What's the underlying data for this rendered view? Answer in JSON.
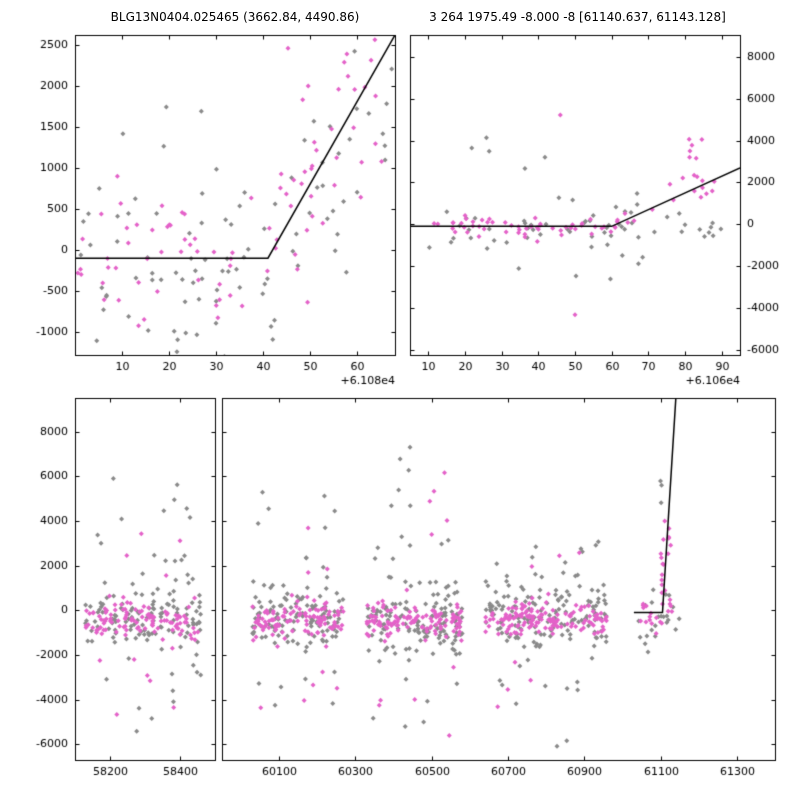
{
  "title": {
    "left": "BLG13N0404.025465 (3662.84, 4490.86)",
    "right": "3 264 1975.49 -8.000 -8 [61140.637, 61143.128]"
  },
  "colors": {
    "background": "#ffffff",
    "axis": "#000000",
    "gray_points": "#8a8a8a",
    "magenta_points": "#e462c9",
    "model_line": "#000000"
  },
  "chart_data": [
    {
      "type": "scatter",
      "name": "top-left-zoom-panel",
      "x_range": [
        0,
        68
      ],
      "y_range": [
        -1280,
        2620
      ],
      "x_ticks": [
        10,
        20,
        30,
        40,
        50,
        60
      ],
      "y_ticks": [
        -1000,
        -500,
        0,
        500,
        1000,
        1500,
        2000,
        2500
      ],
      "x_offset_label": "+6.108e4",
      "y_label_side": "left",
      "model_line": [
        [
          0,
          -100
        ],
        [
          41,
          -100
        ],
        [
          68,
          2620
        ]
      ],
      "seed": 101,
      "groups": [
        {
          "color": "gray",
          "n": 55,
          "x": [
            0,
            42
          ],
          "y": {
            "dist": "normal",
            "mean": -120,
            "sd": 480
          }
        },
        {
          "color": "gray",
          "n": 4,
          "x": [
            8,
            36
          ],
          "y": {
            "dist": "uniform",
            "min": 1200,
            "max": 2000
          }
        },
        {
          "color": "gray",
          "n": 6,
          "x": [
            10,
            45
          ],
          "y": {
            "dist": "uniform",
            "min": -1300,
            "max": -800
          }
        },
        {
          "color": "gray",
          "n": 30,
          "x": [
            42,
            68
          ],
          "y": {
            "dist": "trend",
            "start": 0,
            "end": 2300,
            "sd": 700
          }
        },
        {
          "color": "magenta",
          "n": 48,
          "x": [
            0,
            42
          ],
          "y": {
            "dist": "normal",
            "mean": -80,
            "sd": 380
          }
        },
        {
          "color": "magenta",
          "n": 38,
          "x": [
            42,
            68
          ],
          "y": {
            "dist": "trend",
            "start": 0,
            "end": 2500,
            "sd": 500
          }
        },
        {
          "color": "magenta",
          "n": 4,
          "x": [
            44,
            58
          ],
          "y": {
            "dist": "uniform",
            "min": 1800,
            "max": 2500
          }
        }
      ]
    },
    {
      "type": "scatter",
      "name": "top-right-mid-panel",
      "x_range": [
        5,
        95
      ],
      "y_range": [
        -6250,
        9050
      ],
      "x_ticks": [
        10,
        20,
        30,
        40,
        50,
        60,
        70,
        80,
        90
      ],
      "y_ticks": [
        -6000,
        -4000,
        -2000,
        0,
        2000,
        4000,
        6000,
        8000
      ],
      "x_offset_label": "+6.106e4",
      "y_label_side": "right",
      "model_line": [
        [
          5,
          -100
        ],
        [
          60,
          -100
        ],
        [
          95,
          2700
        ]
      ],
      "seed": 202,
      "groups": [
        {
          "color": "gray",
          "n": 60,
          "x": [
            8,
            90
          ],
          "y": {
            "dist": "normal",
            "mean": -100,
            "sd": 650
          }
        },
        {
          "color": "gray",
          "n": 5,
          "x": [
            20,
            70
          ],
          "y": {
            "dist": "uniform",
            "min": 1500,
            "max": 4200
          }
        },
        {
          "color": "gray",
          "n": 4,
          "x": [
            30,
            75
          ],
          "y": {
            "dist": "uniform",
            "min": -2900,
            "max": -1500
          }
        },
        {
          "color": "magenta",
          "n": 55,
          "x": [
            10,
            62
          ],
          "y": {
            "dist": "normal",
            "mean": -120,
            "sd": 280
          }
        },
        {
          "color": "magenta",
          "n": 14,
          "x": [
            62,
            88
          ],
          "y": {
            "dist": "trend",
            "start": 0,
            "end": 2200,
            "sd": 400
          }
        },
        {
          "color": "magenta",
          "n": 8,
          "x": [
            81,
            85
          ],
          "y": {
            "dist": "uniform",
            "min": 1500,
            "max": 4300
          }
        },
        {
          "color": "magenta",
          "n": 1,
          "x": [
            46,
            46
          ],
          "y": {
            "dist": "uniform",
            "min": 5200,
            "max": 5400
          }
        },
        {
          "color": "magenta",
          "n": 1,
          "x": [
            50,
            50
          ],
          "y": {
            "dist": "uniform",
            "min": -4400,
            "max": -4300
          }
        }
      ]
    },
    {
      "type": "scatter",
      "name": "bottom-full-lightcurve-panel",
      "segments": [
        {
          "x_range": [
            58100,
            58500
          ],
          "x_ticks": [
            58200,
            58400
          ]
        },
        {
          "x_range": [
            59950,
            61400
          ],
          "x_ticks": [
            60100,
            60300,
            60500,
            60700,
            60900,
            61100,
            61300
          ]
        }
      ],
      "y_range": [
        -6700,
        9500
      ],
      "y_ticks": [
        -6000,
        -4000,
        -2000,
        0,
        2000,
        4000,
        6000,
        8000
      ],
      "y_label_side": "left",
      "model_line": [
        [
          61030,
          -100
        ],
        [
          61105,
          -100
        ],
        [
          61140,
          9500
        ]
      ],
      "seed": 303,
      "groups": [
        {
          "color": "gray",
          "n": 120,
          "x": [
            58130,
            58460
          ],
          "y": {
            "dist": "normal",
            "mean": -250,
            "sd": 800
          }
        },
        {
          "color": "gray",
          "n": 10,
          "x": [
            58140,
            58450
          ],
          "y": {
            "dist": "uniform",
            "min": 1800,
            "max": 4500
          }
        },
        {
          "color": "gray",
          "n": 4,
          "x": [
            58160,
            58420
          ],
          "y": {
            "dist": "uniform",
            "min": 4500,
            "max": 7000
          }
        },
        {
          "color": "gray",
          "n": 8,
          "x": [
            58140,
            58450
          ],
          "y": {
            "dist": "uniform",
            "min": -5600,
            "max": -2200
          }
        },
        {
          "color": "gray",
          "n": 120,
          "x": [
            60030,
            60270
          ],
          "y": {
            "dist": "normal",
            "mean": -300,
            "sd": 750
          }
        },
        {
          "color": "gray",
          "n": 8,
          "x": [
            60040,
            60260
          ],
          "y": {
            "dist": "uniform",
            "min": 1800,
            "max": 5300
          }
        },
        {
          "color": "gray",
          "n": 6,
          "x": [
            60040,
            60260
          ],
          "y": {
            "dist": "uniform",
            "min": -4800,
            "max": -2000
          }
        },
        {
          "color": "gray",
          "n": 130,
          "x": [
            60330,
            60580
          ],
          "y": {
            "dist": "normal",
            "mean": -300,
            "sd": 850
          }
        },
        {
          "color": "gray",
          "n": 10,
          "x": [
            60340,
            60570
          ],
          "y": {
            "dist": "uniform",
            "min": 1800,
            "max": 5900
          }
        },
        {
          "color": "gray",
          "n": 3,
          "x": [
            60400,
            60500
          ],
          "y": {
            "dist": "uniform",
            "min": 5900,
            "max": 7400
          }
        },
        {
          "color": "gray",
          "n": 7,
          "x": [
            60340,
            60570
          ],
          "y": {
            "dist": "uniform",
            "min": -5300,
            "max": -2000
          }
        },
        {
          "color": "gray",
          "n": 150,
          "x": [
            60640,
            60960
          ],
          "y": {
            "dist": "normal",
            "mean": -300,
            "sd": 800
          }
        },
        {
          "color": "gray",
          "n": 8,
          "x": [
            60650,
            60950
          ],
          "y": {
            "dist": "uniform",
            "min": 1800,
            "max": 3200
          }
        },
        {
          "color": "gray",
          "n": 8,
          "x": [
            60650,
            60950
          ],
          "y": {
            "dist": "uniform",
            "min": -4800,
            "max": -2000
          }
        },
        {
          "color": "gray",
          "n": 2,
          "x": [
            60800,
            60880
          ],
          "y": {
            "dist": "uniform",
            "min": -6100,
            "max": -5700
          }
        },
        {
          "color": "gray",
          "n": 22,
          "x": [
            61040,
            61150
          ],
          "y": {
            "dist": "normal",
            "mean": -300,
            "sd": 600
          }
        },
        {
          "color": "gray",
          "n": 3,
          "x": [
            61080,
            61120
          ],
          "y": {
            "dist": "uniform",
            "min": 3800,
            "max": 6400
          }
        },
        {
          "color": "magenta",
          "n": 110,
          "x": [
            58130,
            58460
          ],
          "y": {
            "dist": "normal",
            "mean": -400,
            "sd": 420
          }
        },
        {
          "color": "magenta",
          "n": 6,
          "x": [
            58150,
            58440
          ],
          "y": {
            "dist": "uniform",
            "min": -6300,
            "max": -2200
          }
        },
        {
          "color": "magenta",
          "n": 4,
          "x": [
            58150,
            58440
          ],
          "y": {
            "dist": "uniform",
            "min": 1500,
            "max": 4000
          }
        },
        {
          "color": "magenta",
          "n": 115,
          "x": [
            60030,
            60270
          ],
          "y": {
            "dist": "normal",
            "mean": -450,
            "sd": 420
          }
        },
        {
          "color": "magenta",
          "n": 5,
          "x": [
            60040,
            60260
          ],
          "y": {
            "dist": "uniform",
            "min": -4700,
            "max": -2000
          }
        },
        {
          "color": "magenta",
          "n": 3,
          "x": [
            60040,
            60260
          ],
          "y": {
            "dist": "uniform",
            "min": 1500,
            "max": 4900
          }
        },
        {
          "color": "magenta",
          "n": 120,
          "x": [
            60330,
            60580
          ],
          "y": {
            "dist": "normal",
            "mean": -450,
            "sd": 430
          }
        },
        {
          "color": "magenta",
          "n": 5,
          "x": [
            60350,
            60560
          ],
          "y": {
            "dist": "uniform",
            "min": 2000,
            "max": 6300
          }
        },
        {
          "color": "magenta",
          "n": 5,
          "x": [
            60350,
            60560
          ],
          "y": {
            "dist": "uniform",
            "min": -6400,
            "max": -2200
          }
        },
        {
          "color": "magenta",
          "n": 140,
          "x": [
            60640,
            60960
          ],
          "y": {
            "dist": "normal",
            "mean": -400,
            "sd": 430
          }
        },
        {
          "color": "magenta",
          "n": 4,
          "x": [
            60660,
            60940
          ],
          "y": {
            "dist": "uniform",
            "min": -4400,
            "max": -2000
          }
        },
        {
          "color": "magenta",
          "n": 3,
          "x": [
            60660,
            60940
          ],
          "y": {
            "dist": "uniform",
            "min": 1500,
            "max": 2600
          }
        },
        {
          "color": "magenta",
          "n": 12,
          "x": [
            61040,
            61095
          ],
          "y": {
            "dist": "normal",
            "mean": -400,
            "sd": 350
          }
        },
        {
          "color": "magenta",
          "n": 22,
          "x": [
            61098,
            61130
          ],
          "y": {
            "dist": "uniform",
            "min": -800,
            "max": 3400
          }
        },
        {
          "color": "magenta",
          "n": 2,
          "x": [
            61105,
            61125
          ],
          "y": {
            "dist": "uniform",
            "min": 3400,
            "max": 4200
          }
        }
      ]
    }
  ]
}
